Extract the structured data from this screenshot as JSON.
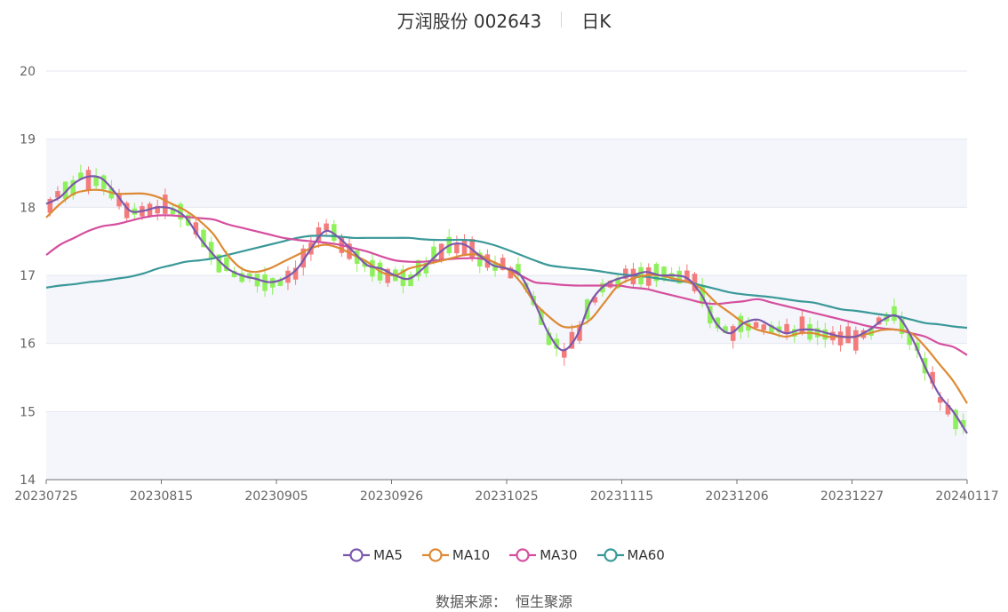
{
  "header": {
    "stock": "万润股份 002643",
    "period": "日K"
  },
  "source": {
    "label": "数据来源：",
    "value": "恒生聚源"
  },
  "chart_data": {
    "type": "candlestick",
    "y_range": [
      14,
      20
    ],
    "y_ticks": [
      "14",
      "15",
      "16",
      "17",
      "18",
      "19",
      "20"
    ],
    "x_ticks": [
      "20230725",
      "20230815",
      "20230905",
      "20230926",
      "20231025",
      "20231115",
      "20231206",
      "20231227",
      "20240117"
    ],
    "colors": {
      "up": "#f37b7b",
      "down": "#8ef05a",
      "band": "#f4f6fb",
      "grid": "#e3e7f0"
    },
    "series": [
      {
        "name": "MA5",
        "color": "#7b58ac",
        "values": [
          18.05,
          18.15,
          18.35,
          18.45,
          18.42,
          18.2,
          17.95,
          17.95,
          18.0,
          17.98,
          17.85,
          17.55,
          17.3,
          17.1,
          17.0,
          16.95,
          16.9,
          16.95,
          17.1,
          17.4,
          17.65,
          17.55,
          17.35,
          17.15,
          17.1,
          17.0,
          16.95,
          17.1,
          17.3,
          17.45,
          17.45,
          17.3,
          17.15,
          17.1,
          17.0,
          16.6,
          16.15,
          15.9,
          16.1,
          16.6,
          16.85,
          16.95,
          17.0,
          17.05,
          17.0,
          17.0,
          16.95,
          16.7,
          16.3,
          16.15,
          16.3,
          16.35,
          16.25,
          16.15,
          16.2,
          16.2,
          16.15,
          16.1,
          16.1,
          16.2,
          16.35,
          16.4,
          16.1,
          15.65,
          15.25,
          15.0,
          14.68
        ]
      },
      {
        "name": "MA10",
        "color": "#dd8a34",
        "values": [
          17.85,
          18.05,
          18.2,
          18.25,
          18.25,
          18.2,
          18.2,
          18.2,
          18.15,
          18.05,
          17.95,
          17.8,
          17.6,
          17.3,
          17.1,
          17.05,
          17.1,
          17.2,
          17.3,
          17.4,
          17.45,
          17.4,
          17.3,
          17.2,
          17.05,
          17.0,
          17.1,
          17.15,
          17.2,
          17.25,
          17.3,
          17.3,
          17.2,
          17.1,
          16.9,
          16.6,
          16.4,
          16.25,
          16.25,
          16.35,
          16.6,
          16.85,
          16.95,
          17.0,
          17.0,
          16.95,
          16.9,
          16.8,
          16.6,
          16.45,
          16.3,
          16.2,
          16.15,
          16.1,
          16.15,
          16.15,
          16.1,
          16.1,
          16.1,
          16.15,
          16.2,
          16.2,
          16.15,
          15.95,
          15.7,
          15.45,
          15.12
        ]
      },
      {
        "name": "MA30",
        "color": "#d54f9e",
        "values": [
          17.3,
          17.45,
          17.55,
          17.65,
          17.72,
          17.75,
          17.8,
          17.85,
          17.88,
          17.88,
          17.86,
          17.84,
          17.82,
          17.75,
          17.7,
          17.65,
          17.6,
          17.55,
          17.52,
          17.5,
          17.48,
          17.45,
          17.4,
          17.35,
          17.28,
          17.22,
          17.2,
          17.2,
          17.22,
          17.24,
          17.25,
          17.25,
          17.2,
          17.1,
          17.0,
          16.9,
          16.88,
          16.86,
          16.85,
          16.85,
          16.85,
          16.85,
          16.82,
          16.8,
          16.75,
          16.7,
          16.65,
          16.6,
          16.58,
          16.6,
          16.62,
          16.65,
          16.6,
          16.55,
          16.5,
          16.45,
          16.4,
          16.35,
          16.3,
          16.25,
          16.22,
          16.2,
          16.15,
          16.1,
          16.0,
          15.95,
          15.83
        ]
      },
      {
        "name": "MA60",
        "color": "#3a9898",
        "values": [
          16.82,
          16.85,
          16.87,
          16.9,
          16.92,
          16.95,
          16.98,
          17.03,
          17.1,
          17.15,
          17.2,
          17.22,
          17.25,
          17.3,
          17.35,
          17.4,
          17.45,
          17.5,
          17.55,
          17.58,
          17.58,
          17.57,
          17.55,
          17.55,
          17.55,
          17.55,
          17.55,
          17.53,
          17.52,
          17.52,
          17.52,
          17.5,
          17.45,
          17.38,
          17.3,
          17.22,
          17.15,
          17.12,
          17.1,
          17.08,
          17.05,
          17.02,
          17.0,
          16.98,
          16.95,
          16.92,
          16.9,
          16.85,
          16.8,
          16.75,
          16.72,
          16.7,
          16.68,
          16.65,
          16.62,
          16.6,
          16.55,
          16.5,
          16.48,
          16.45,
          16.42,
          16.4,
          16.35,
          16.3,
          16.28,
          16.25,
          16.23
        ]
      }
    ]
  }
}
